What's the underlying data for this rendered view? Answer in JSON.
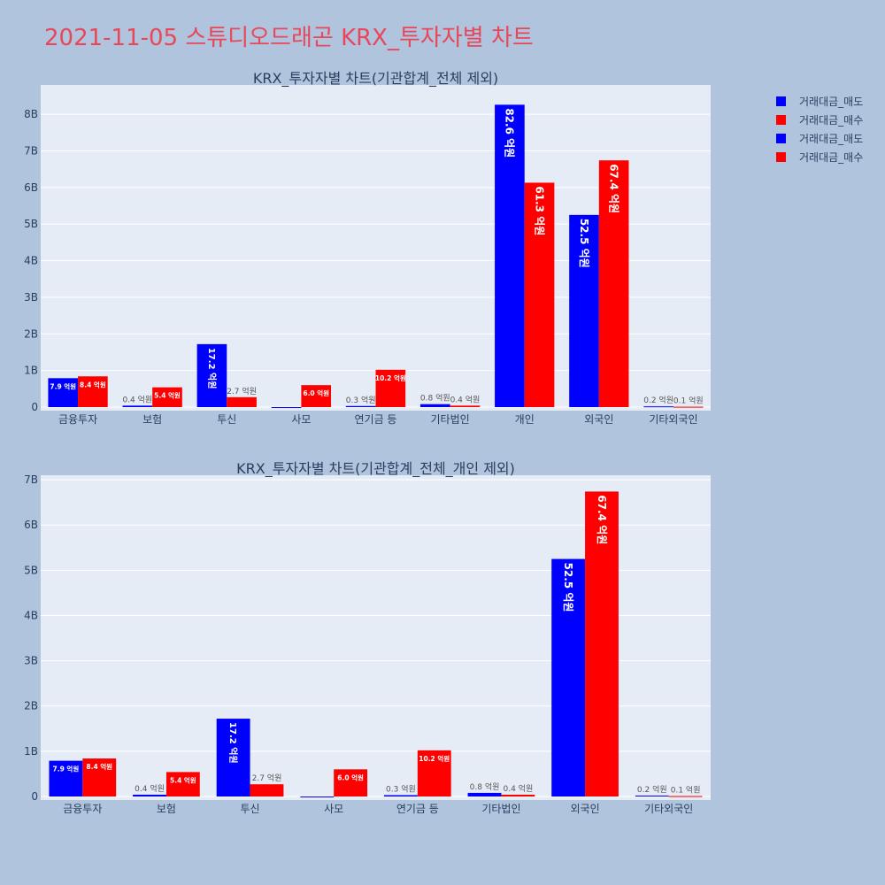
{
  "title": "2021-11-05 스튜디오드래곤 KRX_투자자별 차트",
  "colors": {
    "sell": "#0000ff",
    "buy": "#ff0000",
    "background": "#b0c4de",
    "plot_bg": "#e5ecf6"
  },
  "legend": [
    "거래대금_매도",
    "거래대금_매수",
    "거래대금_매도",
    "거래대금_매수"
  ],
  "chart_data": [
    {
      "type": "bar",
      "title": "KRX_투자자별 차트(기관합계_전체 제외)",
      "categories": [
        "금융투자",
        "보험",
        "투신",
        "사모",
        "연기금 등",
        "기타법인",
        "개인",
        "외국인",
        "기타외국인"
      ],
      "ylim": [
        0,
        8.8
      ],
      "yticks": [
        "0",
        "1B",
        "2B",
        "3B",
        "4B",
        "5B",
        "6B",
        "7B",
        "8B"
      ],
      "series": [
        {
          "name": "거래대금_매도",
          "color": "#0000ff",
          "values": [
            0.79,
            0.04,
            1.72,
            0.0,
            0.03,
            0.08,
            8.26,
            5.25,
            0.02
          ],
          "labels": [
            "7.9 억원",
            "0.4 억원",
            "17.2 억원",
            "",
            "0.3 억원",
            "0.8 억원",
            "82.6 억원",
            "52.5 억원",
            "0.2 억원"
          ]
        },
        {
          "name": "거래대금_매수",
          "color": "#ff0000",
          "values": [
            0.84,
            0.54,
            0.27,
            0.6,
            1.02,
            0.04,
            6.13,
            6.74,
            0.01
          ],
          "labels": [
            "8.4 억원",
            "5.4 억원",
            "2.7 억원",
            "6.0 억원",
            "10.2 억원",
            "0.4 억원",
            "61.3 억원",
            "67.4 억원",
            "0.1 억원"
          ]
        }
      ]
    },
    {
      "type": "bar",
      "title": "KRX_투자자별 차트(기관합계_전체_개인 제외)",
      "categories": [
        "금융투자",
        "보험",
        "투신",
        "사모",
        "연기금 등",
        "기타법인",
        "외국인",
        "기타외국인"
      ],
      "ylim": [
        0,
        7.1
      ],
      "yticks": [
        "0",
        "1B",
        "2B",
        "3B",
        "4B",
        "5B",
        "6B",
        "7B"
      ],
      "series": [
        {
          "name": "거래대금_매도",
          "color": "#0000ff",
          "values": [
            0.79,
            0.04,
            1.72,
            0.0,
            0.03,
            0.08,
            5.25,
            0.02
          ],
          "labels": [
            "7.9 억원",
            "0.4 억원",
            "17.2 억원",
            "",
            "0.3 억원",
            "0.8 억원",
            "52.5 억원",
            "0.2 억원"
          ]
        },
        {
          "name": "거래대금_매수",
          "color": "#ff0000",
          "values": [
            0.84,
            0.54,
            0.27,
            0.6,
            1.02,
            0.04,
            6.74,
            0.01
          ],
          "labels": [
            "8.4 억원",
            "5.4 억원",
            "2.7 억원",
            "6.0 억원",
            "10.2 억원",
            "0.4 억원",
            "67.4 억원",
            "0.1 억원"
          ]
        }
      ]
    }
  ]
}
